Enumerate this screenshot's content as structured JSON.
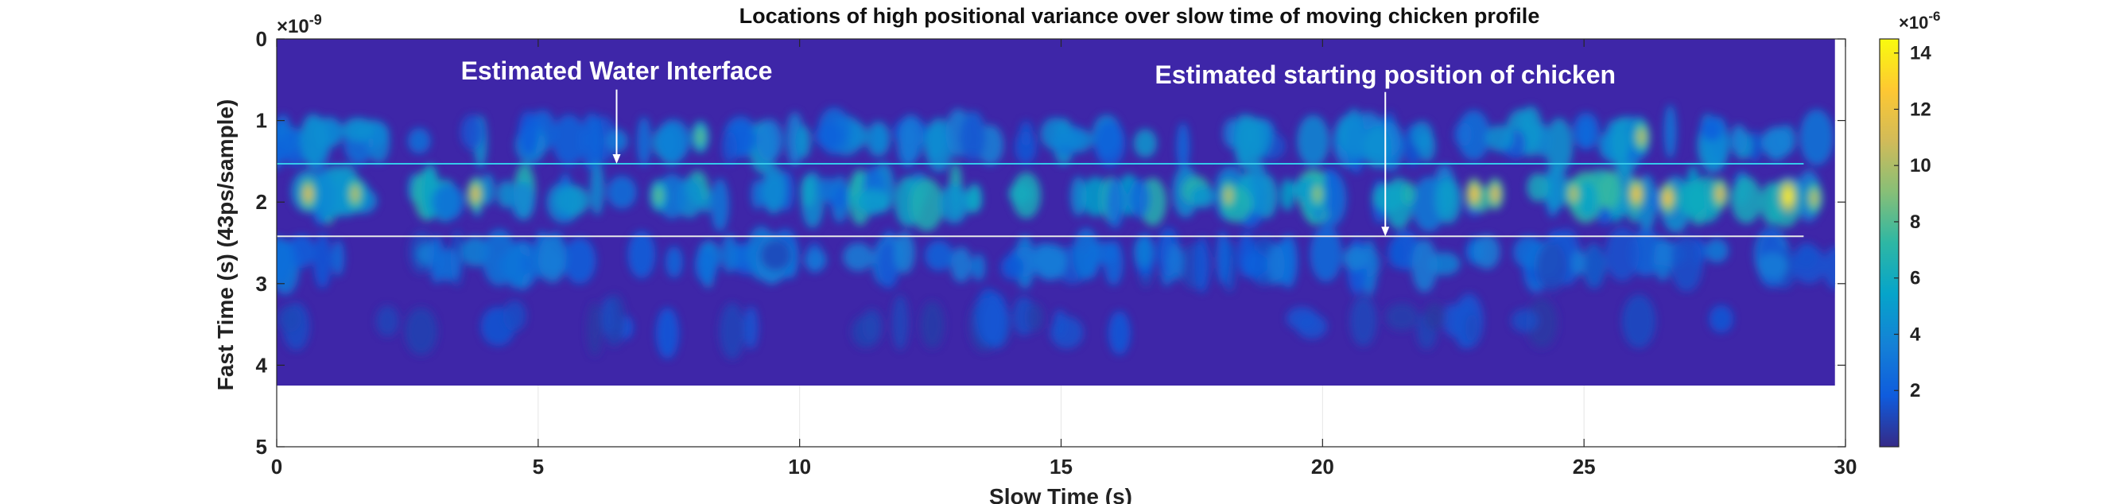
{
  "chart_data": {
    "type": "heatmap",
    "title": "Locations of high positional variance over slow time of moving chicken profile",
    "xlabel": "Slow Time (s)",
    "ylabel": "Fast Time (s) (43ps/sample)",
    "xlim": [
      0,
      30
    ],
    "ylim": [
      0,
      5
    ],
    "y_axis_reversed": true,
    "x_ticks": [
      "0",
      "5",
      "10",
      "15",
      "20",
      "25",
      "30"
    ],
    "y_ticks": [
      "0",
      "1",
      "2",
      "3",
      "4",
      "5"
    ],
    "y_exponent": "×10",
    "y_exponent_power": "-9",
    "grid": true,
    "data_extent": {
      "x": [
        0,
        29.8
      ],
      "y": [
        0,
        4.25
      ]
    },
    "colormap": "parula",
    "colormap_stops": [
      "#352a87",
      "#0f5cdd",
      "#1481d6",
      "#06a4ca",
      "#2eb7a4",
      "#87bf77",
      "#d1bb59",
      "#fec832",
      "#f9fb0e"
    ],
    "background_color": "#3e26a8",
    "colorbar": {
      "min": 0,
      "max": 14.5,
      "ticks": [
        "2",
        "4",
        "6",
        "8",
        "10",
        "12",
        "14"
      ],
      "exponent": "×10",
      "exponent_power": "-6"
    },
    "bands": [
      {
        "y_center": 1.22,
        "typical_value": 4.0,
        "peak_value": 9.0
      },
      {
        "y_center": 1.93,
        "typical_value": 6.0,
        "peak_value": 14.3
      },
      {
        "y_center": 2.7,
        "typical_value": 3.0,
        "peak_value": 5.5
      },
      {
        "y_center": 3.5,
        "typical_value": 1.5,
        "peak_value": 2.5
      }
    ],
    "hot_spots": [
      {
        "x": 0.6,
        "y": 1.9,
        "value": 11
      },
      {
        "x": 1.5,
        "y": 1.9,
        "value": 10
      },
      {
        "x": 3.8,
        "y": 1.9,
        "value": 11
      },
      {
        "x": 7.3,
        "y": 1.92,
        "value": 8
      },
      {
        "x": 8.1,
        "y": 1.2,
        "value": 8
      },
      {
        "x": 18.2,
        "y": 1.92,
        "value": 10
      },
      {
        "x": 19.9,
        "y": 1.9,
        "value": 9
      },
      {
        "x": 22.9,
        "y": 1.9,
        "value": 12
      },
      {
        "x": 23.3,
        "y": 1.9,
        "value": 11
      },
      {
        "x": 24.8,
        "y": 1.9,
        "value": 10
      },
      {
        "x": 26.0,
        "y": 1.9,
        "value": 12
      },
      {
        "x": 26.1,
        "y": 1.2,
        "value": 10
      },
      {
        "x": 26.6,
        "y": 1.95,
        "value": 12
      },
      {
        "x": 27.6,
        "y": 1.9,
        "value": 11
      },
      {
        "x": 28.9,
        "y": 1.93,
        "value": 14
      },
      {
        "x": 29.4,
        "y": 1.95,
        "value": 10
      }
    ],
    "lines": [
      {
        "name": "water-interface",
        "y": 1.53,
        "x": [
          0,
          29.2
        ],
        "color": "#35c8ea"
      },
      {
        "name": "chicken-start",
        "y": 2.42,
        "x": [
          0,
          29.2
        ],
        "color": "#e8e8e8"
      }
    ],
    "annotations": [
      {
        "text": "Estimated Water Interface",
        "text_x": 6.5,
        "text_y": 0.4,
        "arrow_from": [
          6.5,
          0.62
        ],
        "arrow_to": [
          6.5,
          1.53
        ]
      },
      {
        "text": "Estimated starting position of chicken",
        "text_x": 21.2,
        "text_y": 0.45,
        "arrow_from": [
          21.2,
          0.65
        ],
        "arrow_to": [
          21.2,
          2.42
        ]
      }
    ]
  }
}
